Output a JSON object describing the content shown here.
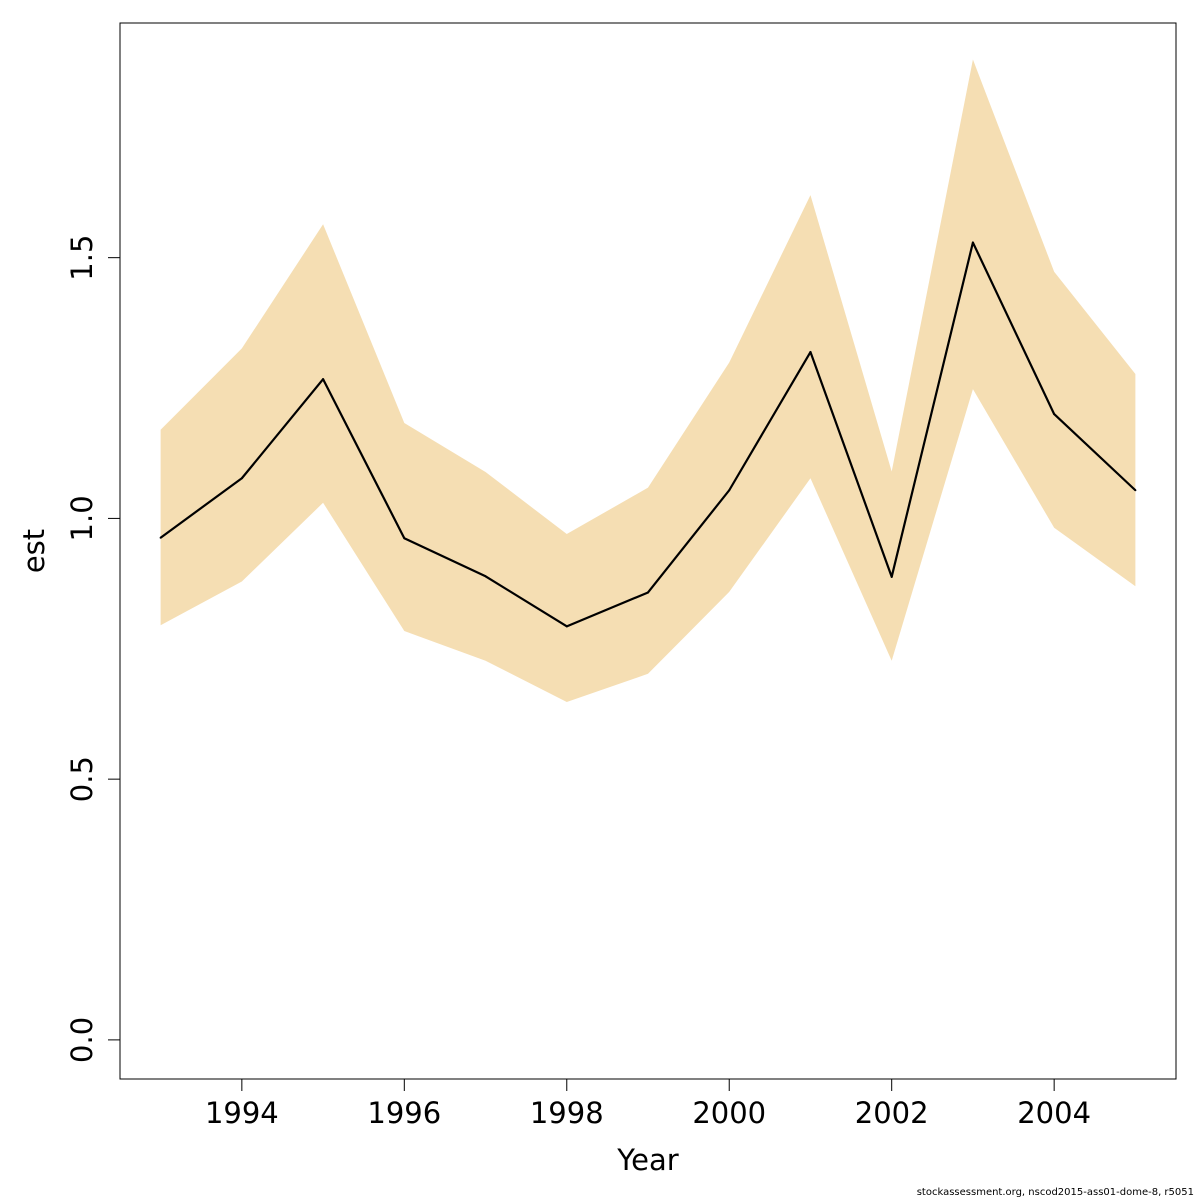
{
  "chart_data": {
    "type": "area",
    "xlabel": "Year",
    "ylabel": "est",
    "xlim": [
      1992.5,
      2005.5
    ],
    "ylim": [
      -0.075,
      1.95
    ],
    "x_ticks": [
      1994,
      1996,
      1998,
      2000,
      2002,
      2004
    ],
    "y_ticks": [
      "0.0",
      "0.5",
      "1.0",
      "1.5"
    ],
    "y_tick_values": [
      0.0,
      0.5,
      1.0,
      1.5
    ],
    "grid": false,
    "legend": "none",
    "band_color": "#F5DEB3",
    "line_color": "#000000",
    "x": [
      1993,
      1994,
      1995,
      1996,
      1997,
      1998,
      1999,
      2000,
      2001,
      2002,
      2003,
      2004,
      2005
    ],
    "series": [
      {
        "values": [
          0.963,
          1.077,
          1.267,
          0.962,
          0.889,
          0.793,
          0.858,
          1.054,
          1.319,
          0.888,
          1.529,
          1.2,
          1.054
        ]
      }
    ],
    "lower": [
      0.795,
      0.879,
      1.03,
      0.784,
      0.727,
      0.648,
      0.702,
      0.859,
      1.077,
      0.727,
      1.248,
      0.982,
      0.87
    ],
    "upper": [
      1.17,
      1.326,
      1.564,
      1.183,
      1.089,
      0.97,
      1.059,
      1.299,
      1.62,
      1.09,
      1.88,
      1.473,
      1.277
    ]
  },
  "footnote": "stockassessment.org, nscod2015-ass01-dome-8, r5051"
}
